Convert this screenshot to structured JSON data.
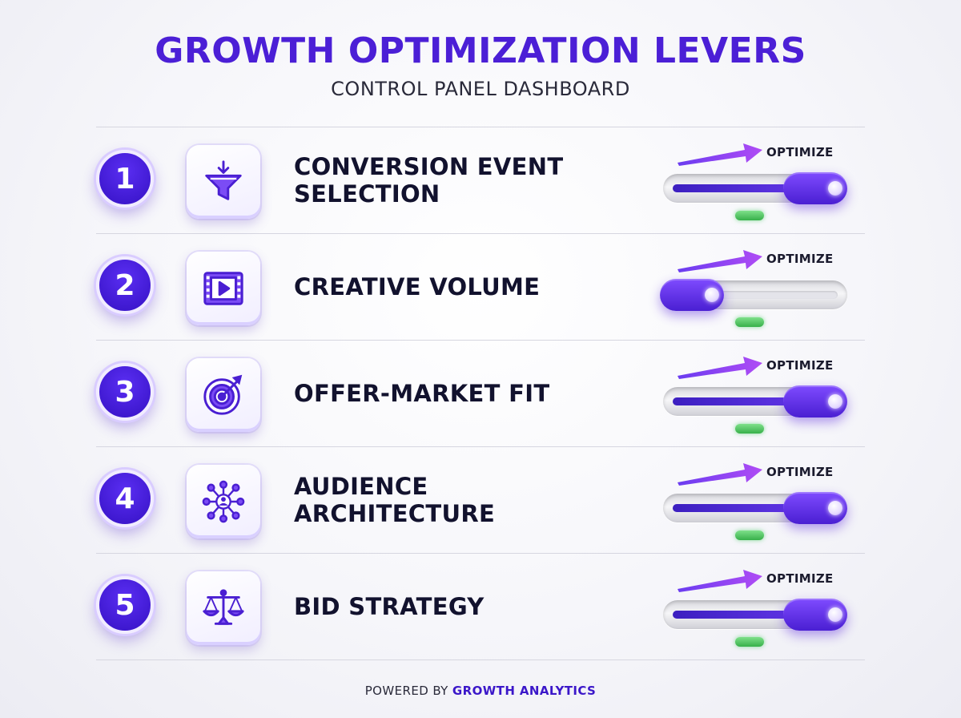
{
  "header": {
    "title": "GROWTH OPTIMIZATION LEVERS",
    "subtitle": "CONTROL PANEL DASHBOARD"
  },
  "levers": [
    {
      "number": "1",
      "label": "CONVERSION EVENT SELECTION",
      "icon": "funnel-icon",
      "action_label": "OPTIMIZE",
      "slider_level": 1.0,
      "indicator": "green"
    },
    {
      "number": "2",
      "label": "CREATIVE VOLUME",
      "icon": "video-play-icon",
      "action_label": "OPTIMIZE",
      "slider_level": 0.0,
      "indicator": "green"
    },
    {
      "number": "3",
      "label": "OFFER-MARKET FIT",
      "icon": "target-icon",
      "action_label": "OPTIMIZE",
      "slider_level": 1.0,
      "indicator": "green"
    },
    {
      "number": "4",
      "label": "AUDIENCE ARCHITECTURE",
      "icon": "network-user-icon",
      "action_label": "OPTIMIZE",
      "slider_level": 1.0,
      "indicator": "green"
    },
    {
      "number": "5",
      "label": "BID STRATEGY",
      "icon": "balance-scale-icon",
      "action_label": "OPTIMIZE",
      "slider_level": 1.0,
      "indicator": "green"
    }
  ],
  "footer": {
    "prefix": "POWERED BY",
    "brand": "GROWTH ANALYTICS"
  },
  "colors": {
    "accent": "#4b1fd6",
    "slider_fill": "#5a2ef2",
    "indicator_green": "#37b04a"
  }
}
